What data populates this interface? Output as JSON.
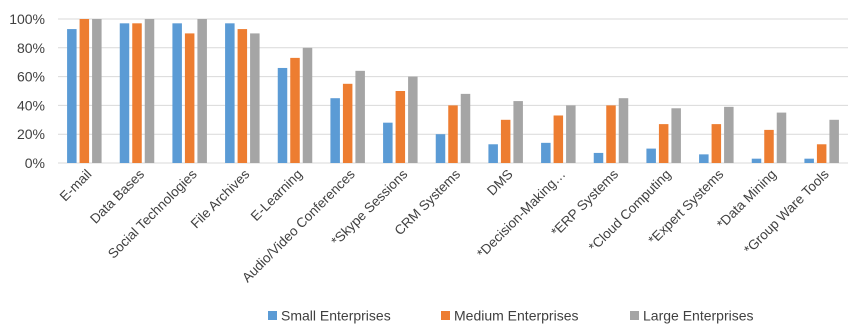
{
  "chart_data": {
    "type": "bar",
    "title": "",
    "xlabel": "",
    "ylabel": "",
    "ylim": [
      0,
      100
    ],
    "yticks": [
      "0%",
      "20%",
      "40%",
      "60%",
      "80%",
      "100%"
    ],
    "ytick_values": [
      0,
      20,
      40,
      60,
      80,
      100
    ],
    "grid": true,
    "legend_position": "bottom",
    "categories": [
      "E-mail",
      "Data Bases",
      "Social Technologies",
      "File Archives",
      "E-Learning",
      "Audio/Video Conferences",
      "*Skype Sessions",
      "CRM Systems",
      "DMS",
      "*Decision-Making…",
      "*ERP Systems",
      "*Cloud Computing",
      "*Expert Systems",
      "*Data Mining",
      "*Group Ware Tools"
    ],
    "series": [
      {
        "name": "Small Enterprises",
        "color": "#5b9bd5",
        "values": [
          93,
          97,
          97,
          97,
          66,
          45,
          28,
          20,
          13,
          14,
          7,
          10,
          6,
          3,
          3
        ]
      },
      {
        "name": "Medium Enterprises",
        "color": "#ed7d31",
        "values": [
          100,
          97,
          90,
          93,
          73,
          55,
          50,
          40,
          30,
          33,
          40,
          27,
          27,
          23,
          13
        ]
      },
      {
        "name": "Large Enterprises",
        "color": "#a5a5a5",
        "values": [
          100,
          100,
          100,
          90,
          80,
          64,
          60,
          48,
          43,
          40,
          45,
          38,
          39,
          35,
          30
        ]
      }
    ]
  }
}
